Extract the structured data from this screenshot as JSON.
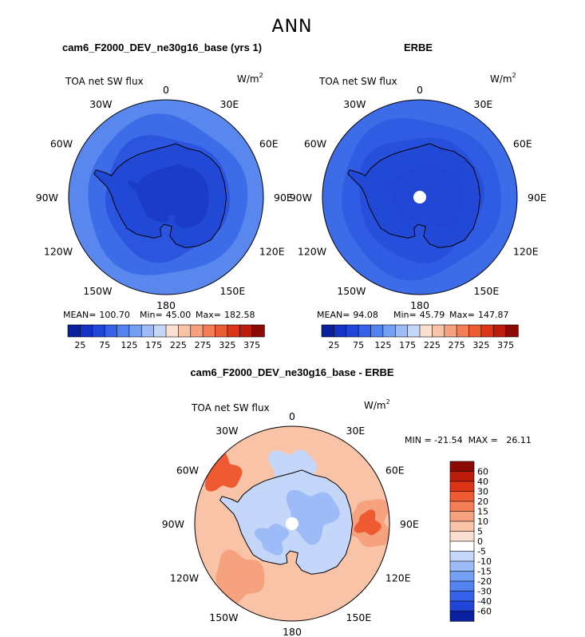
{
  "main_title": "ANN",
  "chart_data": [
    {
      "type": "heatmap",
      "projection": "south-polar-stereographic",
      "title": "cam6_F2000_DEV_ne30g16_base (yrs 1)",
      "left_label": "TOA net SW flux",
      "units_base": "W/m",
      "units_exp": "2",
      "longitude_labels": [
        "0",
        "30E",
        "60E",
        "90E",
        "120E",
        "150E",
        "180",
        "150W",
        "120W",
        "90W",
        "60W",
        "30W"
      ],
      "stats": [
        {
          "label": "MEAN=",
          "value": "100.70"
        },
        {
          "label": "Min=",
          "value": "45.00"
        },
        {
          "label": "Max=",
          "value": "182.58"
        }
      ],
      "colorbar_ticks": [
        "25",
        "75",
        "125",
        "175",
        "225",
        "275",
        "325",
        "375"
      ],
      "colorbar_colors": [
        "#0a1f9e",
        "#1432c4",
        "#2046d9",
        "#3562e8",
        "#5283f0",
        "#74a0f3",
        "#9dbcf7",
        "#c4d7fa",
        "#fbe0d2",
        "#f9c3a8",
        "#f7a27f",
        "#f47f57",
        "#ee5b33",
        "#dd3418",
        "#bb1c0c",
        "#8b0a06"
      ],
      "fill_colors": {
        "ring1": "#5a87ee",
        "ring2": "#3d6ce9",
        "ring3": "#2b55de",
        "continent": "#2249d6",
        "interior": "#1a3cc8"
      }
    },
    {
      "type": "heatmap",
      "projection": "south-polar-stereographic",
      "title": "ERBE",
      "left_label": "TOA net SW flux",
      "units_base": "W/m",
      "units_exp": "2",
      "longitude_labels": [
        "0",
        "30E",
        "60E",
        "90E",
        "120E",
        "150E",
        "180",
        "150W",
        "120W",
        "90W",
        "60W",
        "30W"
      ],
      "stats": [
        {
          "label": "MEAN=",
          "value": "94.08"
        },
        {
          "label": "Min=",
          "value": "45.79"
        },
        {
          "label": "Max=",
          "value": "147.87"
        }
      ],
      "colorbar_ticks": [
        "25",
        "75",
        "125",
        "175",
        "225",
        "275",
        "325",
        "375"
      ],
      "colorbar_colors": [
        "#0a1f9e",
        "#1432c4",
        "#2046d9",
        "#3562e8",
        "#5283f0",
        "#74a0f3",
        "#9dbcf7",
        "#c4d7fa",
        "#fbe0d2",
        "#f9c3a8",
        "#f7a27f",
        "#f47f57",
        "#ee5b33",
        "#dd3418",
        "#bb1c0c",
        "#8b0a06"
      ],
      "fill_colors": {
        "ring1": "#3d6ce9",
        "ring2": "#2f5ce3",
        "ring3": "#2650db",
        "continent": "#2249d6",
        "interior": "#2046d3",
        "pole": "#ffffff"
      }
    },
    {
      "type": "heatmap",
      "projection": "south-polar-stereographic",
      "title": "cam6_F2000_DEV_ne30g16_base - ERBE",
      "left_label": "TOA net SW flux",
      "units_base": "W/m",
      "units_exp": "2",
      "longitude_labels": [
        "0",
        "30E",
        "60E",
        "90E",
        "120E",
        "150E",
        "180",
        "150W",
        "120W",
        "90W",
        "60W",
        "30W"
      ],
      "minmax_text": "MIN = -21.54  MAX =   26.11",
      "colorbar_ticks": [
        "60",
        "40",
        "30",
        "20",
        "15",
        "10",
        "5",
        "0",
        "-5",
        "-10",
        "-15",
        "-20",
        "-30",
        "-40",
        "-60"
      ],
      "colorbar_colors": [
        "#8b0a06",
        "#bb1c0c",
        "#dd3418",
        "#ee5b33",
        "#f47f57",
        "#f7a27f",
        "#f9c3a8",
        "#fbe0d2",
        "#ffffff",
        "#c4d7fa",
        "#9dbcf7",
        "#74a0f3",
        "#5283f0",
        "#3562e8",
        "#2046d9",
        "#0a1f9e"
      ],
      "fill_colors": {
        "ocean": "#f9c3a8",
        "warm": "#f7a27f",
        "hot": "#ee5b33",
        "cool": "#c4d7fa",
        "cold": "#9dbcf7",
        "white": "#ffffff"
      }
    }
  ]
}
